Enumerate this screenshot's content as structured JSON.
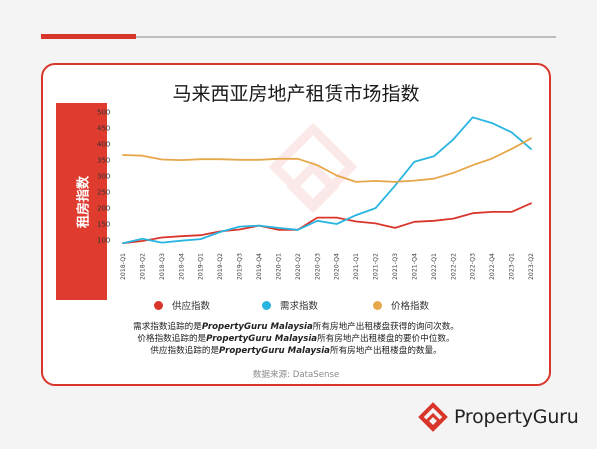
{
  "chart_data": {
    "type": "line",
    "title": "马来西亚房地产租赁市场指数",
    "ylabel": "租房指数",
    "xlabel": "",
    "ylim": [
      75,
      510
    ],
    "yticks": [
      100,
      150,
      200,
      250,
      300,
      350,
      400,
      450,
      500
    ],
    "categories": [
      "2018-Q1",
      "2018-Q2",
      "2018-Q3",
      "2018-Q4",
      "2019-Q1",
      "2019-Q2",
      "2019-Q3",
      "2019-Q4",
      "2020-Q1",
      "2020-Q2",
      "2020-Q3",
      "2020-Q4",
      "2021-Q1",
      "2021-Q2",
      "2021-Q3",
      "2021-Q4",
      "2022-Q1",
      "2022-Q2",
      "2022-Q3",
      "2022-Q4",
      "2023-Q1",
      "2023-Q2"
    ],
    "grid": false,
    "legend_position": "bottom",
    "series": [
      {
        "name": "供应指数",
        "color": "#d9362b",
        "values": [
          90,
          97,
          108,
          112,
          115,
          127,
          133,
          145,
          132,
          132,
          170,
          170,
          158,
          152,
          138,
          157,
          160,
          167,
          184,
          188,
          188,
          215
        ]
      },
      {
        "name": "需求指数",
        "color": "#29b5e0",
        "values": [
          90,
          104,
          92,
          98,
          103,
          125,
          142,
          145,
          138,
          132,
          160,
          150,
          178,
          200,
          270,
          345,
          362,
          415,
          484,
          466,
          437,
          385
        ]
      },
      {
        "name": "价格指数",
        "color": "#e6a64a",
        "values": [
          366,
          364,
          352,
          350,
          353,
          353,
          351,
          351,
          354,
          354,
          334,
          302,
          282,
          285,
          282,
          286,
          292,
          310,
          334,
          355,
          385,
          418
        ]
      }
    ]
  },
  "notes": [
    {
      "pre": "需求指数追踪的是",
      "brand": "PropertyGuru Malaysia",
      "post": "所有房地产出租楼盘获得的询问次数。"
    },
    {
      "pre": "价格指数追踪的是",
      "brand": "PropertyGuru Malaysia",
      "post": "所有房地产出租楼盘的要价中位数。"
    },
    {
      "pre": "供应指数追踪的是",
      "brand": "PropertyGuru Malaysia",
      "post": "所有房地产出租楼盘的数量。"
    }
  ],
  "source": "数据来源: DataSense",
  "brand": {
    "name": "PropertyGuru",
    "logo_icon": "propertyguru-house-logo-icon",
    "accent": "#d9362b"
  }
}
